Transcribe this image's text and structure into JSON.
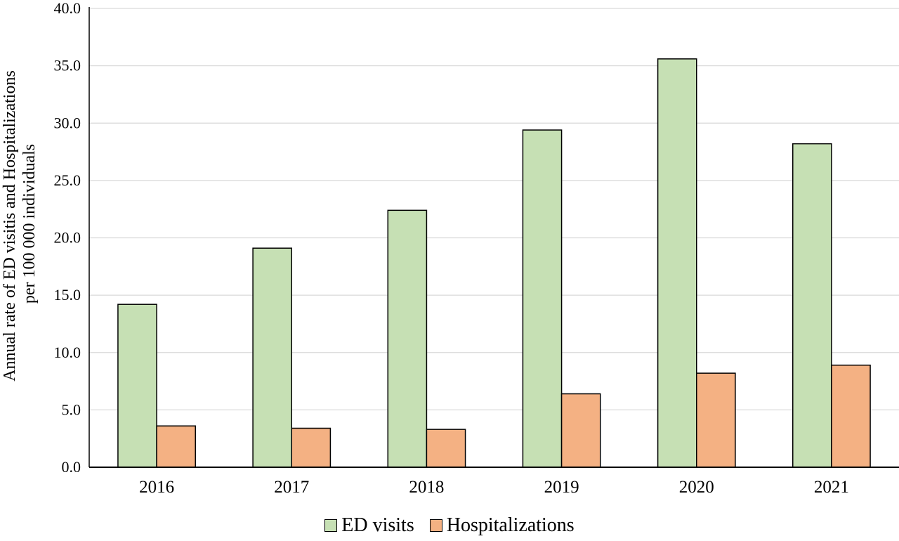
{
  "chart_data": {
    "type": "bar",
    "title": "",
    "xlabel": "",
    "ylabel_lines": [
      "Annual rate of ED visitis and Hospitalizations",
      "per 100 000 individuals"
    ],
    "categories": [
      "2016",
      "2017",
      "2018",
      "2019",
      "2020",
      "2021"
    ],
    "series": [
      {
        "name": "ED visits",
        "color": "#c6e0b4",
        "values": [
          14.2,
          19.1,
          22.4,
          29.4,
          35.6,
          28.2
        ]
      },
      {
        "name": "Hospitalizations",
        "color": "#f4b183",
        "values": [
          3.6,
          3.4,
          3.3,
          6.4,
          8.2,
          8.9
        ]
      }
    ],
    "ylim": [
      0,
      40
    ],
    "yticks": [
      "0.0",
      "5.0",
      "10.0",
      "15.0",
      "20.0",
      "25.0",
      "30.0",
      "35.0",
      "40.0"
    ],
    "grid": true,
    "legend_position": "bottom"
  }
}
